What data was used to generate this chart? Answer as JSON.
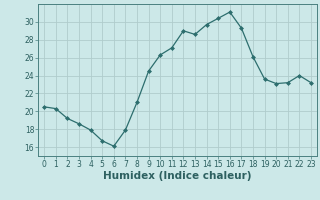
{
  "x": [
    0,
    1,
    2,
    3,
    4,
    5,
    6,
    7,
    8,
    9,
    10,
    11,
    12,
    13,
    14,
    15,
    16,
    17,
    18,
    19,
    20,
    21,
    22,
    23
  ],
  "y": [
    20.5,
    20.3,
    19.2,
    18.6,
    17.9,
    16.7,
    16.1,
    17.9,
    21.0,
    24.5,
    26.3,
    27.1,
    29.0,
    28.6,
    29.7,
    30.4,
    31.1,
    29.3,
    26.1,
    23.6,
    23.1,
    23.2,
    24.0,
    23.2
  ],
  "line_color": "#2d6e6e",
  "marker": "D",
  "marker_size": 2.0,
  "bg_color": "#cce8e8",
  "grid_color_major": "#b0cccc",
  "grid_color_minor": "#c8e0e0",
  "xlabel": "Humidex (Indice chaleur)",
  "xlim": [
    -0.5,
    23.5
  ],
  "ylim": [
    15.0,
    32.0
  ],
  "yticks": [
    16,
    18,
    20,
    22,
    24,
    26,
    28,
    30
  ],
  "xticks": [
    0,
    1,
    2,
    3,
    4,
    5,
    6,
    7,
    8,
    9,
    10,
    11,
    12,
    13,
    14,
    15,
    16,
    17,
    18,
    19,
    20,
    21,
    22,
    23
  ],
  "tick_label_fontsize": 5.5,
  "xlabel_fontsize": 7.5,
  "tick_color": "#2d6060",
  "spine_color": "#4a8080"
}
